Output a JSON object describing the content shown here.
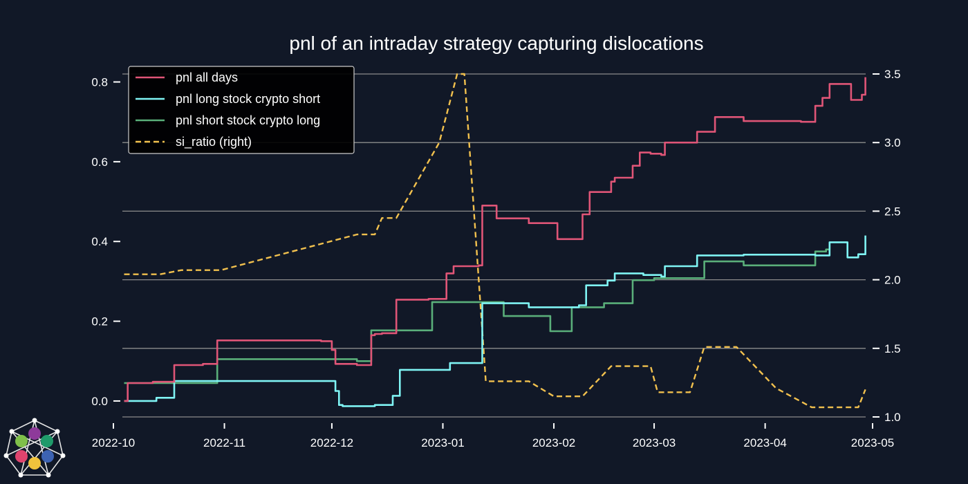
{
  "chart_data": {
    "type": "line",
    "title": "pnl of an intraday strategy capturing dislocations",
    "xlabel": "",
    "ylabel": "",
    "ylim": [
      -0.04,
      0.82
    ],
    "y2lim": [
      1.0,
      3.5
    ],
    "xlim": [
      "2022-10-01",
      "2023-05-01"
    ],
    "x_ticks": [
      "2022-10",
      "2022-11",
      "2022-12",
      "2023-01",
      "2023-02",
      "2023-03",
      "2023-04",
      "2023-05"
    ],
    "y_ticks": [
      0.0,
      0.2,
      0.4,
      0.6,
      0.8
    ],
    "y_tick_labels": [
      "0.0",
      "0.2",
      "0.4",
      "0.6",
      "0.8"
    ],
    "y2_ticks": [
      1.0,
      1.5,
      2.0,
      2.5,
      3.0,
      3.5
    ],
    "y2_tick_labels": [
      "1.0",
      "1.5",
      "2.0",
      "2.5",
      "3.0",
      "3.5"
    ],
    "grid": "right-axis horizontal",
    "legend_position": "top-left",
    "series": [
      {
        "name": "pnl all days",
        "axis": "left",
        "color": "#e05577",
        "style": "step",
        "points": [
          [
            "2022-10-04",
            0.0
          ],
          [
            "2022-10-05",
            0.045
          ],
          [
            "2022-10-12",
            0.048
          ],
          [
            "2022-10-18",
            0.09
          ],
          [
            "2022-10-26",
            0.093
          ],
          [
            "2022-10-30",
            0.152
          ],
          [
            "2022-11-28",
            0.15
          ],
          [
            "2022-12-01",
            0.128
          ],
          [
            "2022-12-02",
            0.093
          ],
          [
            "2022-12-08",
            0.09
          ],
          [
            "2022-12-12",
            0.165
          ],
          [
            "2022-12-13",
            0.168
          ],
          [
            "2022-12-15",
            0.17
          ],
          [
            "2022-12-19",
            0.254
          ],
          [
            "2022-12-28",
            0.256
          ],
          [
            "2023-01-02",
            0.32
          ],
          [
            "2023-01-04",
            0.338
          ],
          [
            "2023-01-11",
            0.34
          ],
          [
            "2023-01-12",
            0.49
          ],
          [
            "2023-01-16",
            0.458
          ],
          [
            "2023-01-25",
            0.446
          ],
          [
            "2023-02-02",
            0.406
          ],
          [
            "2023-02-09",
            0.468
          ],
          [
            "2023-02-11",
            0.524
          ],
          [
            "2023-02-17",
            0.55
          ],
          [
            "2023-02-18",
            0.56
          ],
          [
            "2023-02-23",
            0.59
          ],
          [
            "2023-02-25",
            0.623
          ],
          [
            "2023-02-28",
            0.62
          ],
          [
            "2023-03-03",
            0.617
          ],
          [
            "2023-03-04",
            0.648
          ],
          [
            "2023-03-09",
            0.648
          ],
          [
            "2023-03-13",
            0.675
          ],
          [
            "2023-03-18",
            0.712
          ],
          [
            "2023-03-26",
            0.702
          ],
          [
            "2023-04-11",
            0.7
          ],
          [
            "2023-04-15",
            0.74
          ],
          [
            "2023-04-17",
            0.76
          ],
          [
            "2023-04-19",
            0.795
          ],
          [
            "2023-04-25",
            0.755
          ],
          [
            "2023-04-28",
            0.768
          ],
          [
            "2023-04-29",
            0.812
          ]
        ]
      },
      {
        "name": "pnl long stock crypto short",
        "axis": "left",
        "color": "#7ff4f4",
        "style": "step",
        "points": [
          [
            "2022-10-04",
            0.0
          ],
          [
            "2022-10-13",
            0.008
          ],
          [
            "2022-10-18",
            0.05
          ],
          [
            "2022-12-02",
            0.025
          ],
          [
            "2022-12-03",
            -0.01
          ],
          [
            "2022-12-04",
            -0.013
          ],
          [
            "2022-12-13",
            -0.01
          ],
          [
            "2022-12-18",
            0.013
          ],
          [
            "2022-12-20",
            0.078
          ],
          [
            "2023-01-03",
            0.095
          ],
          [
            "2023-01-12",
            0.245
          ],
          [
            "2023-01-25",
            0.235
          ],
          [
            "2023-02-08",
            0.24
          ],
          [
            "2023-02-10",
            0.29
          ],
          [
            "2023-02-16",
            0.302
          ],
          [
            "2023-02-18",
            0.32
          ],
          [
            "2023-02-26",
            0.316
          ],
          [
            "2023-03-03",
            0.312
          ],
          [
            "2023-03-04",
            0.338
          ],
          [
            "2023-03-13",
            0.365
          ],
          [
            "2023-03-26",
            0.367
          ],
          [
            "2023-04-15",
            0.365
          ],
          [
            "2023-04-19",
            0.398
          ],
          [
            "2023-04-24",
            0.36
          ],
          [
            "2023-04-27",
            0.368
          ],
          [
            "2023-04-29",
            0.415
          ]
        ]
      },
      {
        "name": "pnl short stock crypto long",
        "axis": "left",
        "color": "#5aaf7a",
        "style": "step",
        "points": [
          [
            "2022-10-04",
            0.045
          ],
          [
            "2022-10-30",
            0.105
          ],
          [
            "2022-12-08",
            0.1
          ],
          [
            "2022-12-12",
            0.177
          ],
          [
            "2022-12-29",
            0.248
          ],
          [
            "2023-01-18",
            0.213
          ],
          [
            "2023-01-31",
            0.175
          ],
          [
            "2023-02-06",
            0.235
          ],
          [
            "2023-02-15",
            0.245
          ],
          [
            "2023-02-23",
            0.303
          ],
          [
            "2023-03-01",
            0.308
          ],
          [
            "2023-03-05",
            0.308
          ],
          [
            "2023-03-15",
            0.35
          ],
          [
            "2023-03-26",
            0.34
          ],
          [
            "2023-04-15",
            0.375
          ],
          [
            "2023-04-18",
            0.38
          ],
          [
            "2023-04-19",
            0.395
          ]
        ]
      },
      {
        "name": "si_ratio (right)",
        "axis": "right",
        "color": "#f2c14e",
        "style": "dashed",
        "points": [
          [
            "2022-10-04",
            2.04
          ],
          [
            "2022-10-14",
            2.04
          ],
          [
            "2022-10-20",
            2.07
          ],
          [
            "2022-10-31",
            2.07
          ],
          [
            "2022-12-08",
            2.33
          ],
          [
            "2022-12-13",
            2.33
          ],
          [
            "2022-12-15",
            2.45
          ],
          [
            "2022-12-19",
            2.45
          ],
          [
            "2022-12-31",
            3.0
          ],
          [
            "2023-01-05",
            3.5
          ],
          [
            "2023-01-07",
            3.5
          ],
          [
            "2023-01-13",
            1.26
          ],
          [
            "2023-01-25",
            1.26
          ],
          [
            "2023-02-01",
            1.15
          ],
          [
            "2023-02-09",
            1.15
          ],
          [
            "2023-02-17",
            1.37
          ],
          [
            "2023-02-28",
            1.37
          ],
          [
            "2023-03-02",
            1.18
          ],
          [
            "2023-03-11",
            1.18
          ],
          [
            "2023-03-15",
            1.51
          ],
          [
            "2023-03-24",
            1.51
          ],
          [
            "2023-04-04",
            1.21
          ],
          [
            "2023-04-14",
            1.07
          ],
          [
            "2023-04-27",
            1.07
          ],
          [
            "2023-04-29",
            1.2
          ]
        ]
      }
    ]
  }
}
